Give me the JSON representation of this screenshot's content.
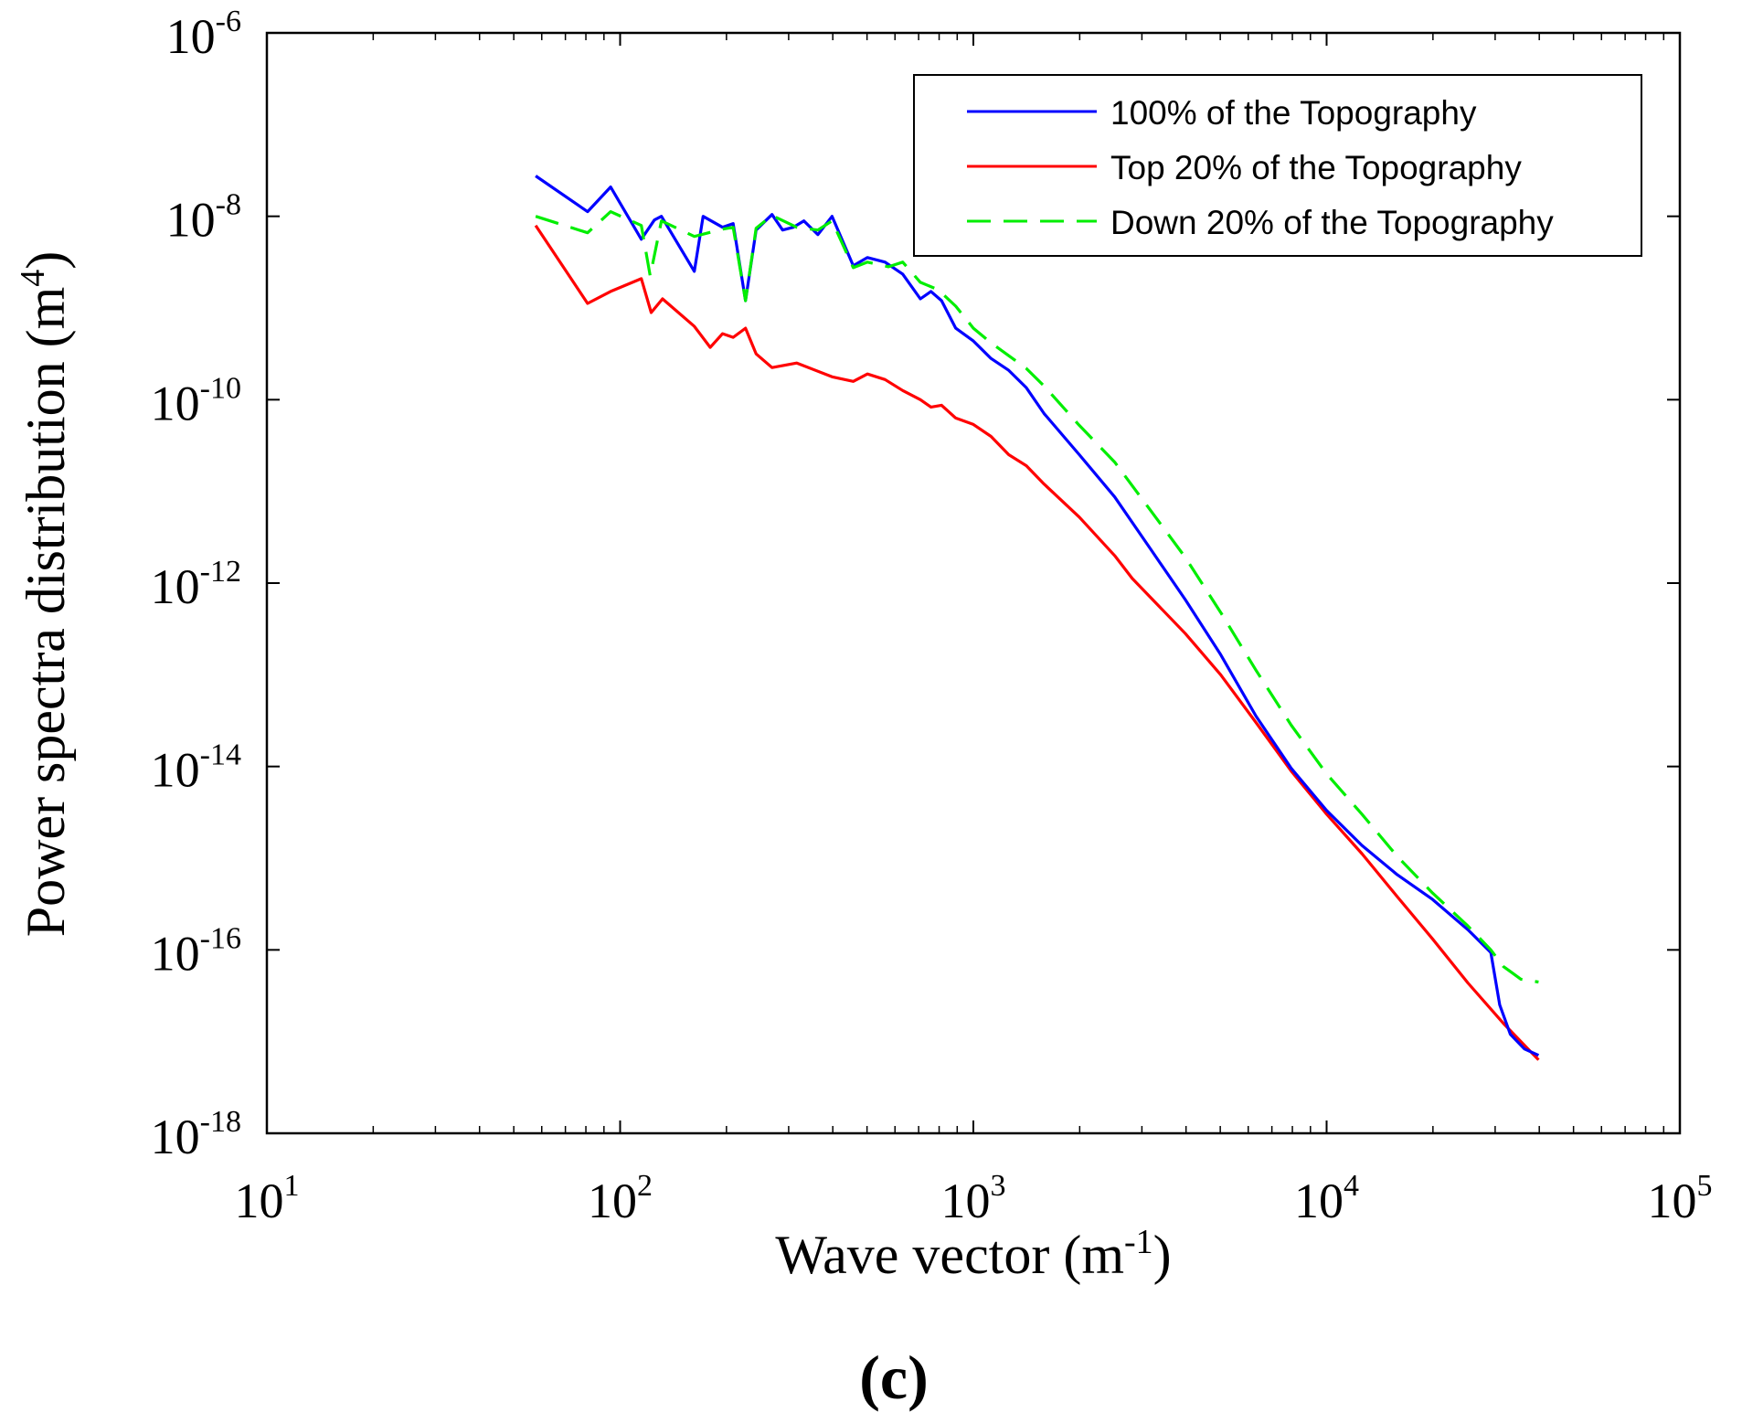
{
  "chart_data": {
    "type": "line",
    "title": "",
    "xlabel": "Wave vector (m",
    "xlabel_sup": "-1",
    "xlabel_close": ")",
    "ylabel": "Power spectra distribution (m",
    "ylabel_sup": "4",
    "ylabel_close": ")",
    "xscale": "log",
    "yscale": "log",
    "xlim_exp": [
      1,
      5
    ],
    "ylim_exp": [
      -18,
      -6
    ],
    "x_ticks": [
      {
        "base": "10",
        "exp": "1"
      },
      {
        "base": "10",
        "exp": "2"
      },
      {
        "base": "10",
        "exp": "3"
      },
      {
        "base": "10",
        "exp": "4"
      },
      {
        "base": "10",
        "exp": "5"
      }
    ],
    "y_ticks": [
      {
        "base": "10",
        "exp": "-18"
      },
      {
        "base": "10",
        "exp": "-16"
      },
      {
        "base": "10",
        "exp": "-14"
      },
      {
        "base": "10",
        "exp": "-12"
      },
      {
        "base": "10",
        "exp": "-10"
      },
      {
        "base": "10",
        "exp": "-8"
      },
      {
        "base": "10",
        "exp": "-6"
      }
    ],
    "legend_position": "top-right",
    "grid": false,
    "panel_label": "(c)",
    "series": [
      {
        "name": "100% of the Topography",
        "color": "#0000ff",
        "dash": "solid",
        "points_log10": [
          [
            1.761,
            -7.56
          ],
          [
            1.908,
            -7.95
          ],
          [
            1.973,
            -7.68
          ],
          [
            2.06,
            -8.25
          ],
          [
            2.097,
            -8.04
          ],
          [
            2.117,
            -8.0
          ],
          [
            2.21,
            -8.6
          ],
          [
            2.235,
            -8.0
          ],
          [
            2.29,
            -8.12
          ],
          [
            2.32,
            -8.08
          ],
          [
            2.355,
            -8.92
          ],
          [
            2.385,
            -8.15
          ],
          [
            2.43,
            -7.98
          ],
          [
            2.46,
            -8.15
          ],
          [
            2.49,
            -8.12
          ],
          [
            2.52,
            -8.05
          ],
          [
            2.56,
            -8.2
          ],
          [
            2.6,
            -8.0
          ],
          [
            2.66,
            -8.54
          ],
          [
            2.7,
            -8.45
          ],
          [
            2.75,
            -8.5
          ],
          [
            2.8,
            -8.63
          ],
          [
            2.85,
            -8.9
          ],
          [
            2.88,
            -8.82
          ],
          [
            2.91,
            -8.92
          ],
          [
            2.95,
            -9.22
          ],
          [
            3.0,
            -9.36
          ],
          [
            3.05,
            -9.55
          ],
          [
            3.1,
            -9.68
          ],
          [
            3.15,
            -9.87
          ],
          [
            3.2,
            -10.15
          ],
          [
            3.3,
            -10.6
          ],
          [
            3.4,
            -11.06
          ],
          [
            3.5,
            -11.62
          ],
          [
            3.6,
            -12.18
          ],
          [
            3.7,
            -12.78
          ],
          [
            3.8,
            -13.45
          ],
          [
            3.9,
            -14.02
          ],
          [
            4.0,
            -14.48
          ],
          [
            4.1,
            -14.86
          ],
          [
            4.2,
            -15.18
          ],
          [
            4.3,
            -15.45
          ],
          [
            4.4,
            -15.78
          ],
          [
            4.465,
            -16.03
          ],
          [
            4.49,
            -16.6
          ],
          [
            4.52,
            -16.92
          ],
          [
            4.56,
            -17.08
          ],
          [
            4.6,
            -17.15
          ]
        ]
      },
      {
        "name": "Top 20% of the Topography",
        "color": "#ff0000",
        "dash": "solid",
        "points_log10": [
          [
            1.761,
            -8.1
          ],
          [
            1.908,
            -8.95
          ],
          [
            1.973,
            -8.82
          ],
          [
            2.06,
            -8.68
          ],
          [
            2.088,
            -9.05
          ],
          [
            2.12,
            -8.9
          ],
          [
            2.21,
            -9.2
          ],
          [
            2.255,
            -9.43
          ],
          [
            2.29,
            -9.28
          ],
          [
            2.32,
            -9.32
          ],
          [
            2.355,
            -9.22
          ],
          [
            2.385,
            -9.5
          ],
          [
            2.43,
            -9.65
          ],
          [
            2.5,
            -9.6
          ],
          [
            2.6,
            -9.75
          ],
          [
            2.66,
            -9.8
          ],
          [
            2.7,
            -9.72
          ],
          [
            2.75,
            -9.78
          ],
          [
            2.8,
            -9.9
          ],
          [
            2.85,
            -10.0
          ],
          [
            2.88,
            -10.08
          ],
          [
            2.91,
            -10.06
          ],
          [
            2.95,
            -10.2
          ],
          [
            3.0,
            -10.27
          ],
          [
            3.05,
            -10.4
          ],
          [
            3.1,
            -10.6
          ],
          [
            3.15,
            -10.72
          ],
          [
            3.2,
            -10.92
          ],
          [
            3.3,
            -11.28
          ],
          [
            3.4,
            -11.7
          ],
          [
            3.45,
            -11.95
          ],
          [
            3.5,
            -12.15
          ],
          [
            3.6,
            -12.55
          ],
          [
            3.7,
            -13.0
          ],
          [
            3.8,
            -13.52
          ],
          [
            3.9,
            -14.05
          ],
          [
            4.0,
            -14.52
          ],
          [
            4.1,
            -14.95
          ],
          [
            4.2,
            -15.42
          ],
          [
            4.3,
            -15.88
          ],
          [
            4.4,
            -16.36
          ],
          [
            4.5,
            -16.8
          ],
          [
            4.6,
            -17.2
          ]
        ]
      },
      {
        "name": "Down 20% of the Topography",
        "color": "#00ee00",
        "dash": "dashed",
        "points_log10": [
          [
            1.761,
            -8.0
          ],
          [
            1.908,
            -8.18
          ],
          [
            1.973,
            -7.95
          ],
          [
            2.06,
            -8.1
          ],
          [
            2.085,
            -8.65
          ],
          [
            2.117,
            -8.05
          ],
          [
            2.21,
            -8.22
          ],
          [
            2.29,
            -8.14
          ],
          [
            2.32,
            -8.12
          ],
          [
            2.355,
            -8.92
          ],
          [
            2.385,
            -8.13
          ],
          [
            2.43,
            -7.99
          ],
          [
            2.5,
            -8.12
          ],
          [
            2.56,
            -8.15
          ],
          [
            2.6,
            -8.05
          ],
          [
            2.66,
            -8.56
          ],
          [
            2.7,
            -8.5
          ],
          [
            2.76,
            -8.55
          ],
          [
            2.8,
            -8.5
          ],
          [
            2.85,
            -8.72
          ],
          [
            2.9,
            -8.8
          ],
          [
            2.95,
            -8.98
          ],
          [
            3.0,
            -9.22
          ],
          [
            3.05,
            -9.38
          ],
          [
            3.1,
            -9.52
          ],
          [
            3.15,
            -9.66
          ],
          [
            3.2,
            -9.85
          ],
          [
            3.3,
            -10.28
          ],
          [
            3.4,
            -10.68
          ],
          [
            3.5,
            -11.2
          ],
          [
            3.6,
            -11.72
          ],
          [
            3.7,
            -12.32
          ],
          [
            3.8,
            -12.95
          ],
          [
            3.9,
            -13.55
          ],
          [
            4.0,
            -14.08
          ],
          [
            4.1,
            -14.52
          ],
          [
            4.2,
            -14.98
          ],
          [
            4.3,
            -15.38
          ],
          [
            4.4,
            -15.74
          ],
          [
            4.465,
            -16.0
          ],
          [
            4.5,
            -16.18
          ],
          [
            4.55,
            -16.32
          ],
          [
            4.6,
            -16.35
          ]
        ]
      }
    ]
  }
}
